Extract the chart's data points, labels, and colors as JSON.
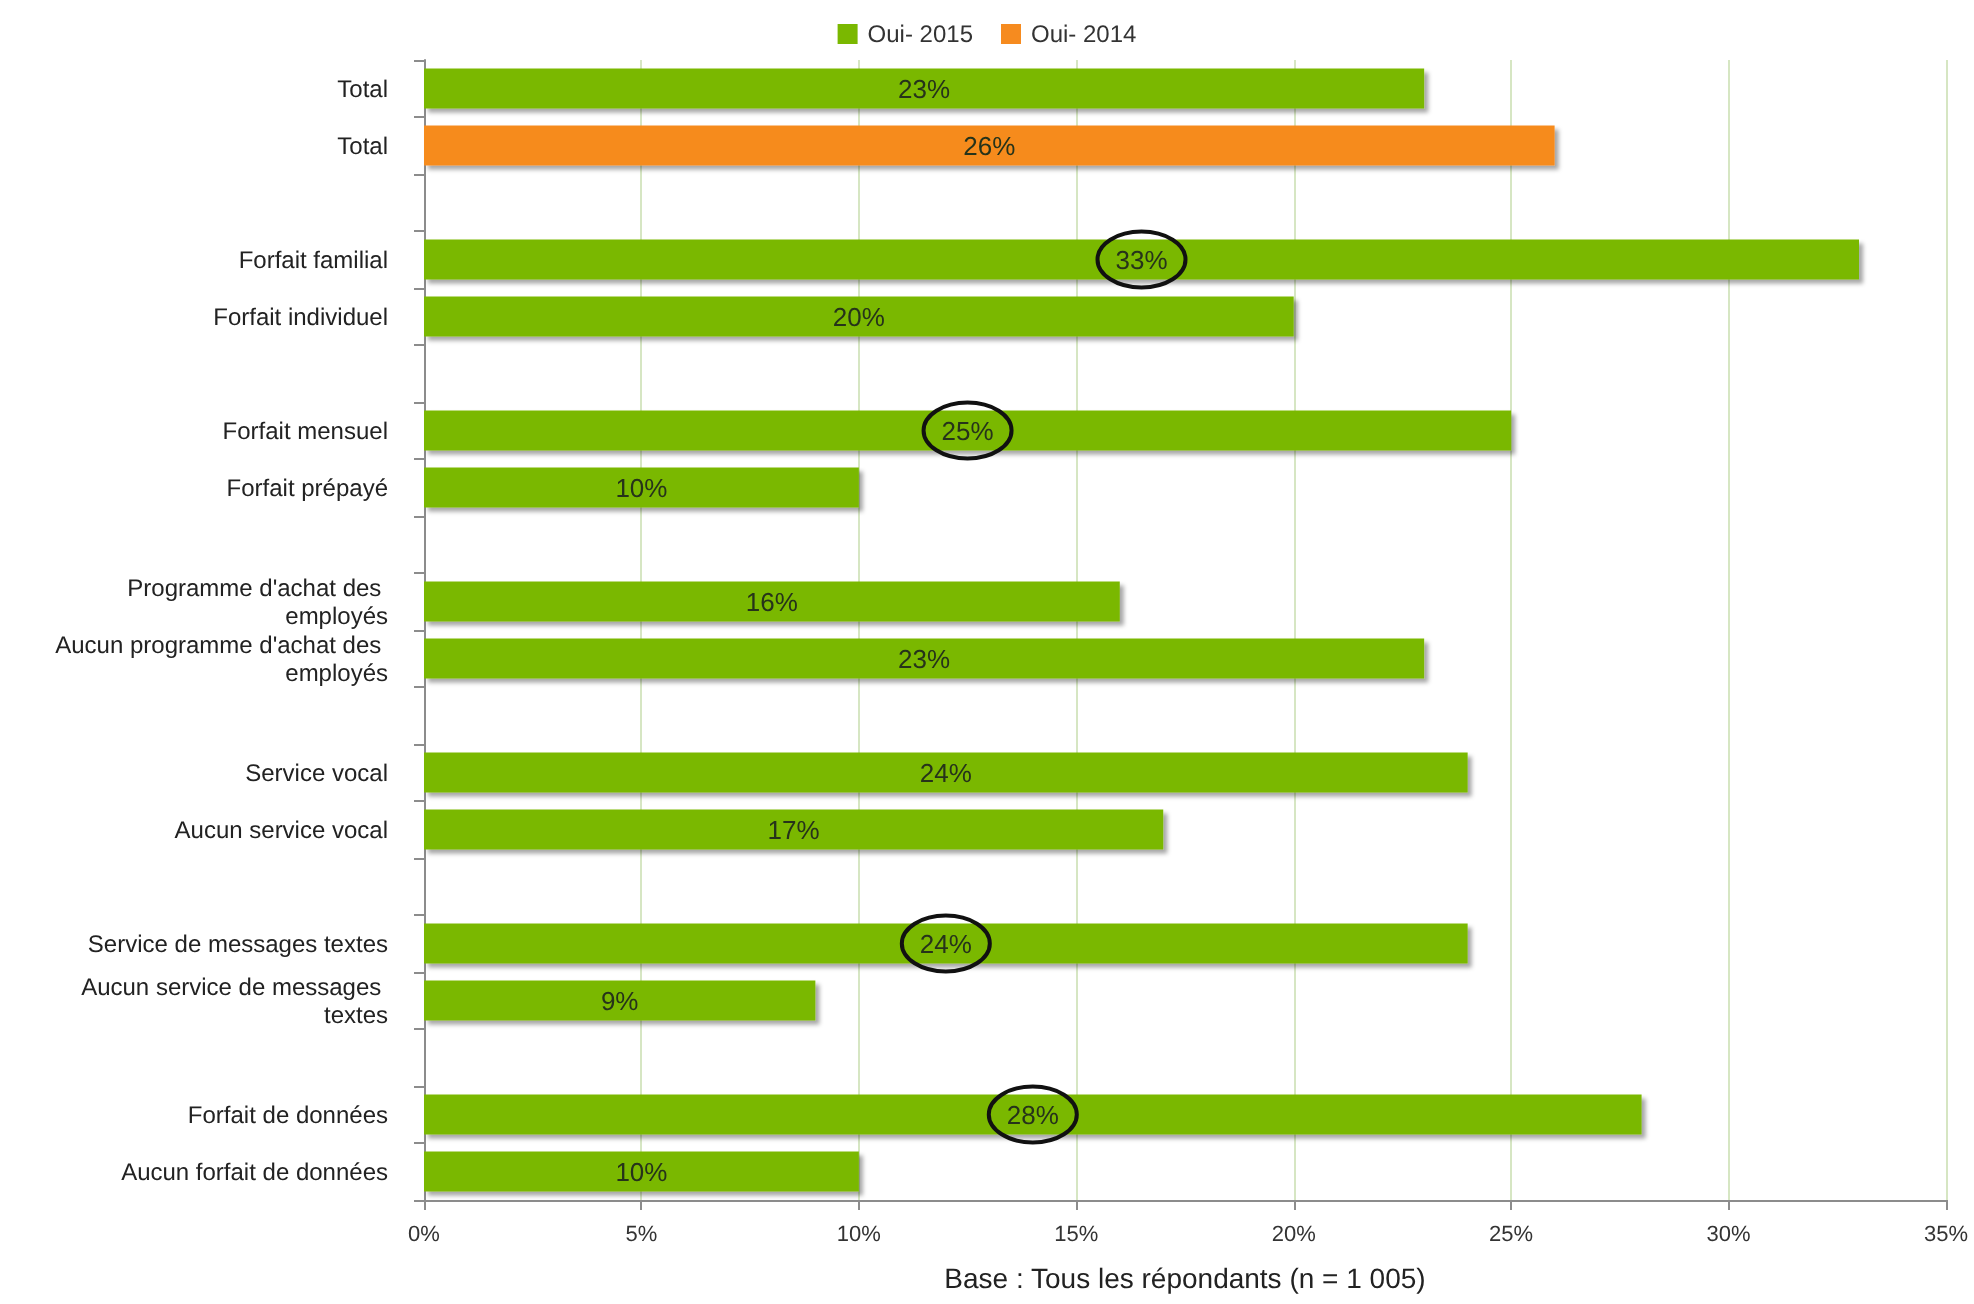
{
  "chart_data": {
    "type": "bar",
    "orientation": "horizontal",
    "categories": [
      "Total",
      "Total",
      null,
      "Forfait familial",
      "Forfait individuel",
      null,
      "Forfait mensuel",
      "Forfait prépayé",
      null,
      "Programme d'achat des employés",
      "Aucun programme d'achat des employés",
      null,
      "Service vocal",
      "Aucun service vocal",
      null,
      "Service de messages textes",
      "Aucun service de messages textes",
      null,
      "Forfait de données",
      "Aucun forfait de données"
    ],
    "series": [
      {
        "name": "Oui- 2015",
        "color": "#7ab800",
        "values": [
          23,
          null,
          null,
          33,
          20,
          null,
          25,
          10,
          null,
          16,
          23,
          null,
          24,
          17,
          null,
          24,
          9,
          null,
          28,
          10
        ],
        "value_labels": [
          "23%",
          null,
          null,
          "33%",
          "20%",
          null,
          "25%",
          "10%",
          null,
          "16%",
          "23%",
          null,
          "24%",
          "17%",
          null,
          "24%",
          "9%",
          null,
          "28%",
          "10%"
        ]
      },
      {
        "name": "Oui- 2014",
        "color": "#f68b1f",
        "values": [
          null,
          26,
          null,
          null,
          null,
          null,
          null,
          null,
          null,
          null,
          null,
          null,
          null,
          null,
          null,
          null,
          null,
          null,
          null,
          null
        ],
        "value_labels": [
          null,
          "26%",
          null,
          null,
          null,
          null,
          null,
          null,
          null,
          null,
          null,
          null,
          null,
          null,
          null,
          null,
          null,
          null,
          null,
          null
        ]
      }
    ],
    "xlim": [
      0,
      35
    ],
    "xticks": [
      {
        "value": 0,
        "label": "0%"
      },
      {
        "value": 5,
        "label": "5%"
      },
      {
        "value": 10,
        "label": "10%"
      },
      {
        "value": 15,
        "label": "15%"
      },
      {
        "value": 20,
        "label": "20%"
      },
      {
        "value": 25,
        "label": "25%"
      },
      {
        "value": 30,
        "label": "30%"
      },
      {
        "value": 35,
        "label": "35%"
      }
    ],
    "xlabel": "Base : Tous les répondants (n = 1 005)",
    "legend": "top",
    "grid": "x"
  }
}
